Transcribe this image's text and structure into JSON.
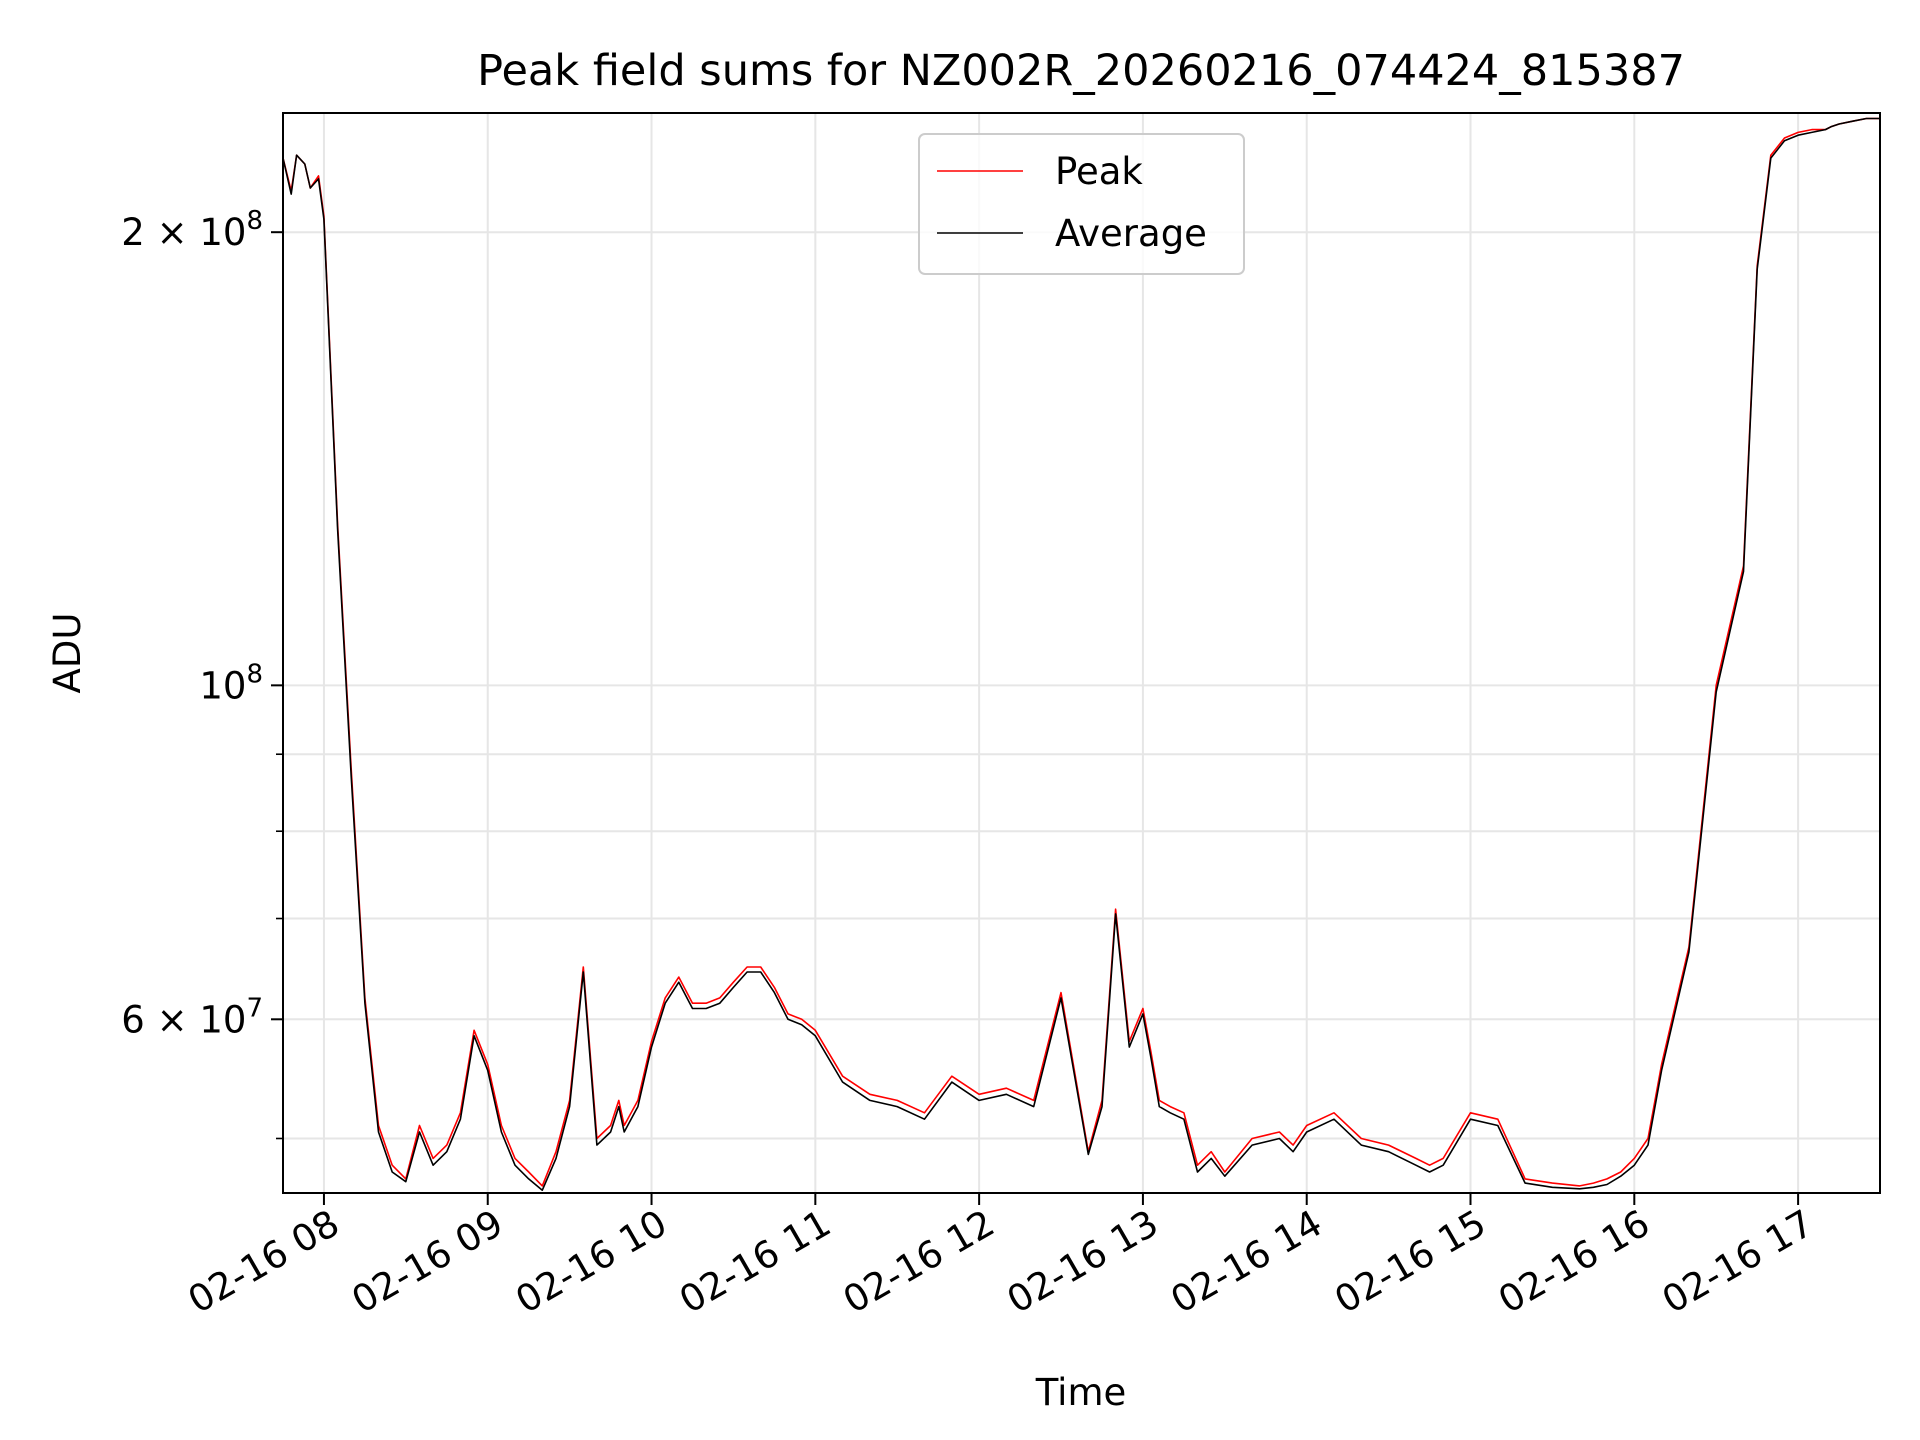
{
  "chart_data": {
    "type": "line",
    "title": "Peak field sums for NZ002R_20260216_074424_815387",
    "xlabel": "Time",
    "ylabel": "ADU",
    "yscale": "log",
    "ylim": [
      46000000,
      240000000
    ],
    "xlim": [
      "2026-02-16 07:45",
      "2026-02-16 17:30"
    ],
    "grid": true,
    "legend": "upper center",
    "x_ticks": [
      "02-16 08",
      "02-16 09",
      "02-16 10",
      "02-16 11",
      "02-16 12",
      "02-16 13",
      "02-16 14",
      "02-16 15",
      "02-16 16",
      "02-16 17"
    ],
    "y_ticks": [
      {
        "value": 200000000,
        "mant": "2",
        "times": "×",
        "base": "10",
        "exp": "8"
      },
      {
        "value": 100000000,
        "mant": "",
        "times": "",
        "base": "10",
        "exp": "8"
      },
      {
        "value": 60000000,
        "mant": "6",
        "times": "×",
        "base": "10",
        "exp": "7"
      }
    ],
    "y_minor_ticks": [
      50000000,
      70000000,
      80000000,
      90000000
    ],
    "x": [
      "07:45",
      "07:48",
      "07:50",
      "07:53",
      "07:55",
      "07:58",
      "08:00",
      "08:05",
      "08:10",
      "08:15",
      "08:20",
      "08:25",
      "08:30",
      "08:35",
      "08:40",
      "08:45",
      "08:50",
      "08:55",
      "09:00",
      "09:05",
      "09:10",
      "09:15",
      "09:20",
      "09:25",
      "09:30",
      "09:35",
      "09:40",
      "09:45",
      "09:48",
      "09:50",
      "09:55",
      "10:00",
      "10:05",
      "10:10",
      "10:15",
      "10:20",
      "10:25",
      "10:30",
      "10:35",
      "10:40",
      "10:45",
      "10:50",
      "10:55",
      "11:00",
      "11:10",
      "11:20",
      "11:30",
      "11:40",
      "11:50",
      "12:00",
      "12:10",
      "12:20",
      "12:30",
      "12:40",
      "12:45",
      "12:50",
      "12:55",
      "13:00",
      "13:03",
      "13:06",
      "13:10",
      "13:15",
      "13:20",
      "13:25",
      "13:30",
      "13:40",
      "13:50",
      "13:55",
      "14:00",
      "14:10",
      "14:20",
      "14:30",
      "14:40",
      "14:45",
      "14:50",
      "15:00",
      "15:10",
      "15:20",
      "15:30",
      "15:40",
      "15:45",
      "15:50",
      "15:55",
      "16:00",
      "16:05",
      "16:10",
      "16:20",
      "16:30",
      "16:40",
      "16:45",
      "16:50",
      "16:55",
      "17:00",
      "17:05",
      "17:10",
      "17:12",
      "17:15",
      "17:20",
      "17:25",
      "17:30"
    ],
    "series": [
      {
        "name": "Peak",
        "color": "#ff0000",
        "values": [
          224000000,
          213000000,
          225000000,
          222000000,
          214000000,
          218000000,
          205000000,
          128000000,
          88000000,
          62000000,
          51000000,
          48000000,
          47000000,
          51000000,
          48500000,
          49500000,
          52000000,
          59000000,
          56000000,
          51000000,
          48500000,
          47500000,
          46500000,
          49000000,
          53000000,
          65000000,
          50000000,
          51000000,
          53000000,
          51000000,
          53000000,
          58000000,
          62000000,
          64000000,
          61500000,
          61500000,
          62000000,
          63500000,
          65000000,
          65000000,
          63000000,
          60500000,
          60000000,
          59000000,
          55000000,
          53500000,
          53000000,
          52000000,
          55000000,
          53500000,
          54000000,
          53000000,
          62500000,
          49000000,
          53000000,
          71000000,
          58000000,
          61000000,
          57000000,
          53000000,
          52500000,
          52000000,
          48000000,
          49000000,
          47500000,
          50000000,
          50500000,
          49500000,
          51000000,
          52000000,
          50000000,
          49500000,
          48500000,
          48000000,
          48500000,
          52000000,
          51500000,
          47000000,
          46700000,
          46500000,
          46700000,
          47000000,
          47500000,
          48500000,
          50000000,
          56000000,
          67000000,
          100000000,
          120000000,
          190000000,
          225000000,
          231000000,
          233000000,
          234000000,
          234000000,
          235000000,
          236000000,
          237000000,
          238000000,
          238000000
        ]
      },
      {
        "name": "Average",
        "color": "#000000",
        "values": [
          224000000,
          212000000,
          225000000,
          222000000,
          214000000,
          217000000,
          204000000,
          127000000,
          87000000,
          61500000,
          50500000,
          47500000,
          46800000,
          50500000,
          48000000,
          49000000,
          51500000,
          58500000,
          55500000,
          50500000,
          48000000,
          47000000,
          46200000,
          48500000,
          52500000,
          64500000,
          49500000,
          50500000,
          52500000,
          50500000,
          52500000,
          57500000,
          61500000,
          63500000,
          61000000,
          61000000,
          61500000,
          63000000,
          64500000,
          64500000,
          62500000,
          60000000,
          59500000,
          58500000,
          54500000,
          53000000,
          52500000,
          51500000,
          54500000,
          53000000,
          53500000,
          52500000,
          62000000,
          48800000,
          52500000,
          70500000,
          57500000,
          60500000,
          56500000,
          52500000,
          52000000,
          51500000,
          47500000,
          48500000,
          47200000,
          49500000,
          50000000,
          49000000,
          50500000,
          51500000,
          49500000,
          49000000,
          48000000,
          47500000,
          48000000,
          51500000,
          51000000,
          46700000,
          46400000,
          46300000,
          46400000,
          46600000,
          47200000,
          48000000,
          49500000,
          55500000,
          66500000,
          99000000,
          119000000,
          189000000,
          224000000,
          230000000,
          232000000,
          233000000,
          234000000,
          235000000,
          236000000,
          237000000,
          238000000,
          238000000
        ]
      }
    ]
  }
}
